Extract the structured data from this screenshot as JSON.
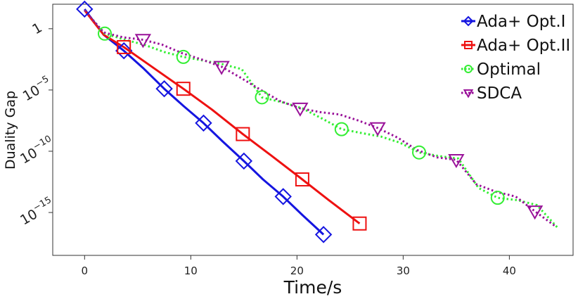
{
  "chart_data": {
    "type": "line",
    "title": "",
    "xlabel": "Time/s",
    "ylabel": "Duality Gap",
    "xlim": [
      -3,
      46
    ],
    "ylim_log10": [
      -18.5,
      2
    ],
    "y_scale": "log",
    "x_ticks": [
      0,
      10,
      20,
      30,
      40
    ],
    "x_tick_labels": [
      "0",
      "10",
      "20",
      "30",
      "40"
    ],
    "y_ticks": [
      {
        "value_log10": 0,
        "base": "1",
        "exp": ""
      },
      {
        "value_log10": -5,
        "base": "10",
        "exp": "−5"
      },
      {
        "value_log10": -10,
        "base": "10",
        "exp": "−10"
      },
      {
        "value_log10": -15,
        "base": "10",
        "exp": "−15"
      }
    ],
    "legend_position": "top-right",
    "series": [
      {
        "name": "Ada+ Opt.I",
        "color": "#1515e0",
        "line_style": "solid",
        "marker": "diamond",
        "x": [
          0,
          1.8,
          3.7,
          5.5,
          7.5,
          9.3,
          11.2,
          13.0,
          15.0,
          16.8,
          18.7,
          20.5,
          22.5
        ],
        "y_log10": [
          1.6,
          -0.5,
          -1.8,
          -3.2,
          -4.9,
          -6.3,
          -7.7,
          -9.2,
          -10.8,
          -12.3,
          -13.7,
          -15.2,
          -16.8
        ],
        "markers_at": [
          0,
          3.7,
          7.5,
          11.2,
          15.0,
          18.7,
          22.5
        ]
      },
      {
        "name": "Ada+ Opt.II",
        "color": "#ee1111",
        "line_style": "solid",
        "marker": "square",
        "x": [
          0,
          1.8,
          3.7,
          6.0,
          9.3,
          12.0,
          14.9,
          17.5,
          20.5,
          23.0,
          25.9
        ],
        "y_log10": [
          1.5,
          -0.5,
          -1.5,
          -2.9,
          -4.9,
          -6.6,
          -8.6,
          -10.3,
          -12.3,
          -14.0,
          -15.9
        ],
        "markers_at": [
          3.7,
          9.3,
          14.9,
          20.5,
          25.9
        ]
      },
      {
        "name": "Optimal",
        "color": "#33ee33",
        "line_style": "dotted",
        "marker": "circle",
        "x": [
          0,
          1.9,
          3.8,
          5.6,
          7.5,
          9.3,
          11.2,
          13.0,
          14.8,
          16.7,
          18.6,
          20.5,
          22.3,
          24.2,
          26.0,
          27.9,
          29.7,
          31.5,
          33.4,
          35.2,
          37.1,
          38.9,
          40.8,
          42.6,
          44.5
        ],
        "y_log10": [
          1.5,
          -0.4,
          -0.9,
          -1.3,
          -1.9,
          -2.3,
          -2.6,
          -2.9,
          -3.3,
          -5.6,
          -6.0,
          -6.5,
          -7.3,
          -8.2,
          -8.5,
          -8.8,
          -9.3,
          -10.1,
          -10.4,
          -10.6,
          -13.0,
          -13.8,
          -14.0,
          -14.4,
          -16.2
        ],
        "markers_at": [
          1.9,
          9.3,
          16.7,
          24.2,
          31.5,
          38.9
        ]
      },
      {
        "name": "SDCA",
        "color": "#991199",
        "line_style": "dotted",
        "marker": "triangle-down",
        "x": [
          0,
          1.8,
          3.6,
          5.5,
          7.3,
          9.2,
          11.0,
          12.9,
          14.7,
          16.6,
          18.4,
          20.3,
          22.1,
          24.0,
          25.8,
          27.6,
          29.5,
          31.3,
          33.2,
          35.0,
          36.9,
          38.7,
          40.6,
          42.4,
          44.3
        ],
        "y_log10": [
          1.5,
          -0.3,
          -0.7,
          -0.9,
          -1.3,
          -2.0,
          -2.5,
          -3.1,
          -4.0,
          -5.0,
          -5.9,
          -6.5,
          -6.8,
          -7.0,
          -7.5,
          -8.1,
          -8.9,
          -9.9,
          -10.5,
          -10.7,
          -12.7,
          -13.3,
          -13.7,
          -14.9,
          -16.1
        ],
        "markers_at": [
          5.5,
          12.9,
          20.3,
          27.6,
          35.0,
          42.4
        ]
      }
    ]
  }
}
